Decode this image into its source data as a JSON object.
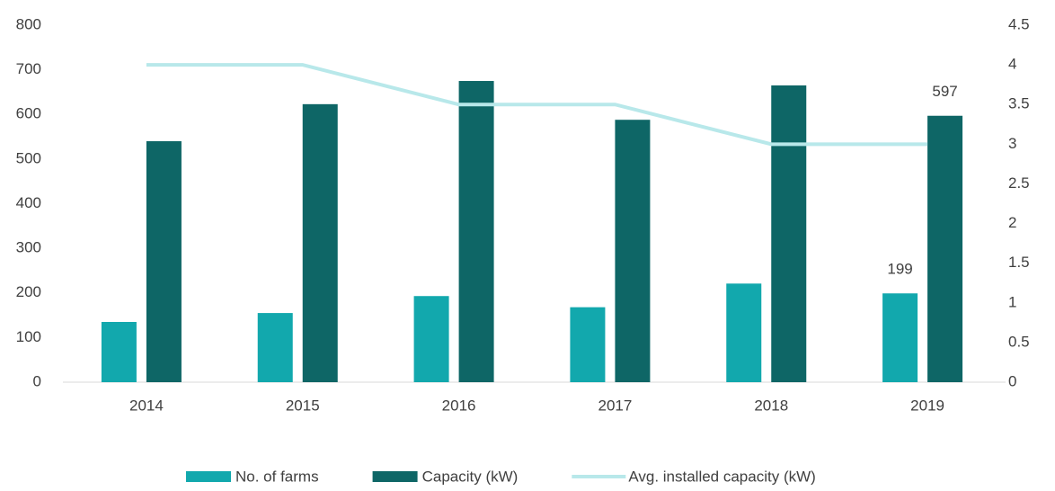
{
  "chart_data": {
    "type": "bar_line",
    "categories": [
      "2014",
      "2015",
      "2016",
      "2017",
      "2018",
      "2019"
    ],
    "series": [
      {
        "name": "No. of farms",
        "color": "#12a8ad",
        "values": [
          135,
          155,
          193,
          168,
          221,
          199
        ],
        "value_labels": [
          null,
          null,
          null,
          null,
          null,
          "199"
        ]
      },
      {
        "name": "Capacity (kW)",
        "color": "#0e6666",
        "values": [
          540,
          623,
          675,
          588,
          665,
          597
        ],
        "value_labels": [
          null,
          null,
          null,
          null,
          null,
          "597"
        ]
      },
      {
        "name": "Avg. installed capacity (kW)",
        "color": "#b8e8ea",
        "type": "line",
        "axis": "y2",
        "values": [
          4,
          4,
          3.5,
          3.5,
          3,
          3
        ]
      }
    ],
    "ylim": [
      0,
      800
    ],
    "yticks": [
      0,
      100,
      200,
      300,
      400,
      500,
      600,
      700,
      800
    ],
    "y2lim": [
      0,
      4.5
    ],
    "y2ticks": [
      0,
      0.5,
      1,
      1.5,
      2,
      2.5,
      3,
      3.5,
      4,
      4.5
    ],
    "grid": false,
    "legend": "bottom"
  }
}
